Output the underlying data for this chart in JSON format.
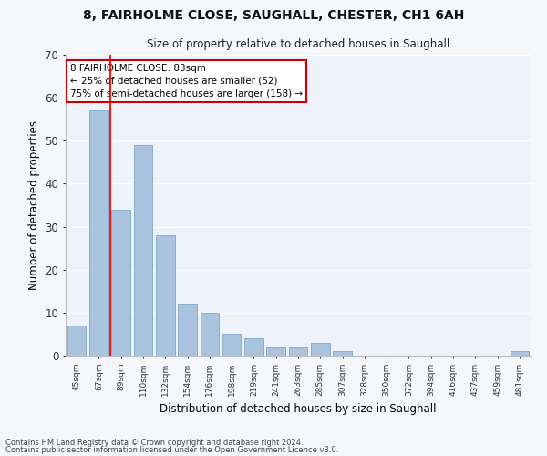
{
  "title1": "8, FAIRHOLME CLOSE, SAUGHALL, CHESTER, CH1 6AH",
  "title2": "Size of property relative to detached houses in Saughall",
  "xlabel": "Distribution of detached houses by size in Saughall",
  "ylabel": "Number of detached properties",
  "categories": [
    "45sqm",
    "67sqm",
    "89sqm",
    "110sqm",
    "132sqm",
    "154sqm",
    "176sqm",
    "198sqm",
    "219sqm",
    "241sqm",
    "263sqm",
    "285sqm",
    "307sqm",
    "328sqm",
    "350sqm",
    "372sqm",
    "394sqm",
    "416sqm",
    "437sqm",
    "459sqm",
    "481sqm"
  ],
  "values": [
    7,
    57,
    34,
    49,
    28,
    12,
    10,
    5,
    4,
    2,
    2,
    3,
    1,
    0,
    0,
    0,
    0,
    0,
    0,
    0,
    1
  ],
  "bar_color": "#aac4e0",
  "bar_edge_color": "#7aaace",
  "bar_edge_width": 0.6,
  "background_color": "#eef2fa",
  "fig_background_color": "#f5f7fd",
  "grid_color": "#ffffff",
  "red_line_x": 1.5,
  "annotation_text": "8 FAIRHOLME CLOSE: 83sqm\n← 25% of detached houses are smaller (52)\n75% of semi-detached houses are larger (158) →",
  "annotation_box_color": "#ffffff",
  "annotation_box_edge": "#cc0000",
  "footer1": "Contains HM Land Registry data © Crown copyright and database right 2024.",
  "footer2": "Contains public sector information licensed under the Open Government Licence v3.0.",
  "ylim": [
    0,
    70
  ],
  "yticks": [
    0,
    10,
    20,
    30,
    40,
    50,
    60,
    70
  ]
}
